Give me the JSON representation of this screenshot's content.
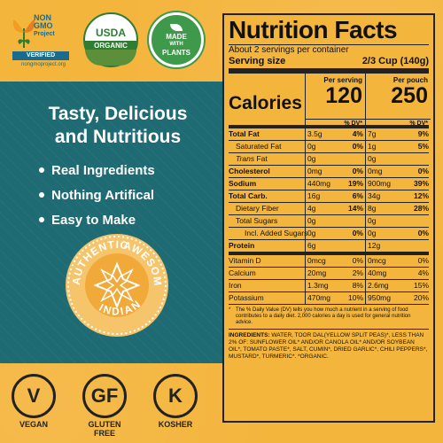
{
  "badges": {
    "nongmo": {
      "line1": "NON",
      "line2": "GMO",
      "line3": "Project",
      "verified": "VERIFIED",
      "site": "nongmoproject.org"
    },
    "usda": {
      "top": "USDA",
      "band": "ORGANIC"
    },
    "plants": {
      "line1": "MADE",
      "line2": "WITH",
      "line3": "PLANTS"
    }
  },
  "headline": {
    "line1": "Tasty, Delicious",
    "line2": "and Nutritious"
  },
  "bullets": [
    "Real Ingredients",
    "Nothing Artifical",
    "Easy to Make"
  ],
  "emblem": {
    "top": "AUTHENTIC",
    "top2": "AWESOME",
    "bottom": "INDIAN"
  },
  "diet": [
    {
      "symbol": "V",
      "label": "VEGAN"
    },
    {
      "symbol": "GF",
      "label": "GLUTEN FREE"
    },
    {
      "symbol": "K",
      "label": "KOSHER"
    }
  ],
  "nutrition": {
    "title": "Nutrition Facts",
    "servings": "About 2 servings per container",
    "serving_size_label": "Serving size",
    "serving_size_value": "2/3 Cup (140g)",
    "col1_head_1": "Per serving",
    "col2_head_1": "Per pouch",
    "calories_label": "Calories",
    "calories_serving": "120",
    "calories_pouch": "250",
    "dv_head": "% DV*",
    "rows": [
      {
        "name": "Total Fat",
        "v1": "3.5g",
        "d1": "4%",
        "v2": "7g",
        "d2": "9%",
        "style": "b"
      },
      {
        "name": "Saturated Fat",
        "v1": "0g",
        "d1": "0%",
        "v2": "1g",
        "d2": "5%",
        "style": "indent"
      },
      {
        "name": "Trans Fat",
        "v1": "0g",
        "d1": "",
        "v2": "0g",
        "d2": "",
        "style": "indent-i"
      },
      {
        "name": "Cholesterol",
        "v1": "0mg",
        "d1": "0%",
        "v2": "0mg",
        "d2": "0%",
        "style": "b"
      },
      {
        "name": "Sodium",
        "v1": "440mg",
        "d1": "19%",
        "v2": "900mg",
        "d2": "39%",
        "style": "b"
      },
      {
        "name": "Total Carb.",
        "v1": "16g",
        "d1": "6%",
        "v2": "34g",
        "d2": "12%",
        "style": "b"
      },
      {
        "name": "Dietary Fiber",
        "v1": "4g",
        "d1": "14%",
        "v2": "8g",
        "d2": "28%",
        "style": "indent"
      },
      {
        "name": "Total Sugars",
        "v1": "0g",
        "d1": "",
        "v2": "0g",
        "d2": "",
        "style": "indent"
      },
      {
        "name": "Incl. Added Sugars",
        "v1": "0g",
        "d1": "0%",
        "v2": "0g",
        "d2": "0%",
        "style": "indent2"
      },
      {
        "name": "Protein",
        "v1": "6g",
        "d1": "",
        "v2": "12g",
        "d2": "",
        "style": "b-thick"
      },
      {
        "name": "Vitamin D",
        "v1": "0mcg",
        "d1": "0%",
        "v2": "0mcg",
        "d2": "0%",
        "style": "n"
      },
      {
        "name": "Calcium",
        "v1": "20mg",
        "d1": "2%",
        "v2": "40mg",
        "d2": "4%",
        "style": "n"
      },
      {
        "name": "Iron",
        "v1": "1.3mg",
        "d1": "8%",
        "v2": "2.6mg",
        "d2": "15%",
        "style": "n"
      },
      {
        "name": "Potassium",
        "v1": "470mg",
        "d1": "10%",
        "v2": "950mg",
        "d2": "20%",
        "style": "n"
      }
    ],
    "footnote": "The % Daily Value (DV) tells you how much a nutrient in a serving of food contributes to a daily diet. 2,000 calories a day is used for general nutrition advice.",
    "ingredients_label": "INGREDIENTS:",
    "ingredients": "WATER, TOOR DAL(YELLOW SPLIT PEAS)*, LESS THAN 2% OF: SUNFLOWER OIL* AND/OR CANOLA OIL* AND/OR SOYBEAN OIL*, TOMATO PASTE*, SALT, CUMIN*, DRIED GARLIC*, CHILI PEPPERS*, MUSTARD*, TURMERIC*.",
    "organic_note": "*ORGANIC."
  }
}
